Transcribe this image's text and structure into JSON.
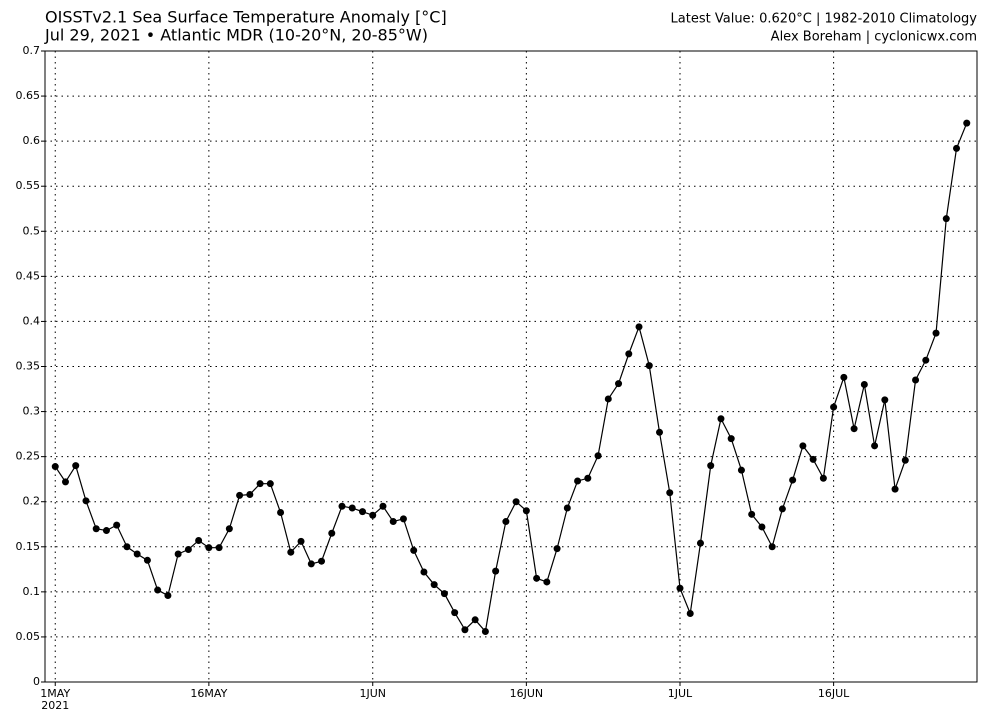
{
  "chart_data": {
    "type": "line",
    "title": "OISSTv2.1 Sea Surface Temperature Anomaly [°C]",
    "subtitle": "Jul 29, 2021 • Atlantic MDR (10-20°N, 20-85°W)",
    "annotations": [
      "Latest Value: 0.620°C | 1982-2010 Climatology",
      "Alex Boreham | cyclonicwx.com"
    ],
    "x": [
      "2021-05-01",
      "2021-05-02",
      "2021-05-03",
      "2021-05-04",
      "2021-05-05",
      "2021-05-06",
      "2021-05-07",
      "2021-05-08",
      "2021-05-09",
      "2021-05-10",
      "2021-05-11",
      "2021-05-12",
      "2021-05-13",
      "2021-05-14",
      "2021-05-15",
      "2021-05-16",
      "2021-05-17",
      "2021-05-18",
      "2021-05-19",
      "2021-05-20",
      "2021-05-21",
      "2021-05-22",
      "2021-05-23",
      "2021-05-24",
      "2021-05-25",
      "2021-05-26",
      "2021-05-27",
      "2021-05-28",
      "2021-05-29",
      "2021-05-30",
      "2021-05-31",
      "2021-06-01",
      "2021-06-02",
      "2021-06-03",
      "2021-06-04",
      "2021-06-05",
      "2021-06-06",
      "2021-06-07",
      "2021-06-08",
      "2021-06-09",
      "2021-06-10",
      "2021-06-11",
      "2021-06-12",
      "2021-06-13",
      "2021-06-14",
      "2021-06-15",
      "2021-06-16",
      "2021-06-17",
      "2021-06-18",
      "2021-06-19",
      "2021-06-20",
      "2021-06-21",
      "2021-06-22",
      "2021-06-23",
      "2021-06-24",
      "2021-06-25",
      "2021-06-26",
      "2021-06-27",
      "2021-06-28",
      "2021-06-29",
      "2021-06-30",
      "2021-07-01",
      "2021-07-02",
      "2021-07-03",
      "2021-07-04",
      "2021-07-05",
      "2021-07-06",
      "2021-07-07",
      "2021-07-08",
      "2021-07-09",
      "2021-07-10",
      "2021-07-11",
      "2021-07-12",
      "2021-07-13",
      "2021-07-14",
      "2021-07-15",
      "2021-07-16",
      "2021-07-17",
      "2021-07-18",
      "2021-07-19",
      "2021-07-20",
      "2021-07-21",
      "2021-07-22",
      "2021-07-23",
      "2021-07-24",
      "2021-07-25",
      "2021-07-26",
      "2021-07-27",
      "2021-07-28",
      "2021-07-29"
    ],
    "series": [
      {
        "color": "#000000",
        "values": [
          0.239,
          0.222,
          0.24,
          0.201,
          0.17,
          0.168,
          0.174,
          0.15,
          0.142,
          0.135,
          0.102,
          0.096,
          0.142,
          0.147,
          0.157,
          0.149,
          0.149,
          0.17,
          0.207,
          0.208,
          0.22,
          0.22,
          0.188,
          0.144,
          0.156,
          0.131,
          0.134,
          0.165,
          0.195,
          0.193,
          0.189,
          0.185,
          0.195,
          0.178,
          0.181,
          0.146,
          0.122,
          0.108,
          0.098,
          0.077,
          0.058,
          0.069,
          0.056,
          0.123,
          0.178,
          0.2,
          0.19,
          0.115,
          0.111,
          0.148,
          0.193,
          0.223,
          0.226,
          0.251,
          0.314,
          0.331,
          0.364,
          0.394,
          0.351,
          0.277,
          0.21,
          0.104,
          0.076,
          0.154,
          0.24,
          0.292,
          0.27,
          0.235,
          0.186,
          0.172,
          0.15,
          0.192,
          0.224,
          0.262,
          0.247,
          0.226,
          0.305,
          0.338,
          0.281,
          0.33,
          0.262,
          0.313,
          0.214,
          0.246,
          0.335,
          0.357,
          0.387,
          0.514,
          0.592,
          0.62
        ]
      }
    ],
    "xlim": [
      "2021-04-30",
      "2021-07-30"
    ],
    "xticks": [
      {
        "value": "2021-05-01",
        "label": "1MAY",
        "sublabel": "2021"
      },
      {
        "value": "2021-05-16",
        "label": "16MAY"
      },
      {
        "value": "2021-06-01",
        "label": "1JUN"
      },
      {
        "value": "2021-06-16",
        "label": "16JUN"
      },
      {
        "value": "2021-07-01",
        "label": "1JUL"
      },
      {
        "value": "2021-07-16",
        "label": "16JUL"
      }
    ],
    "ylim": [
      0,
      0.7
    ],
    "yticks": [
      0,
      0.05,
      0.1,
      0.15,
      0.2,
      0.25,
      0.3,
      0.35,
      0.4,
      0.45,
      0.5,
      0.55,
      0.6,
      0.65,
      0.7
    ],
    "grid": true
  }
}
